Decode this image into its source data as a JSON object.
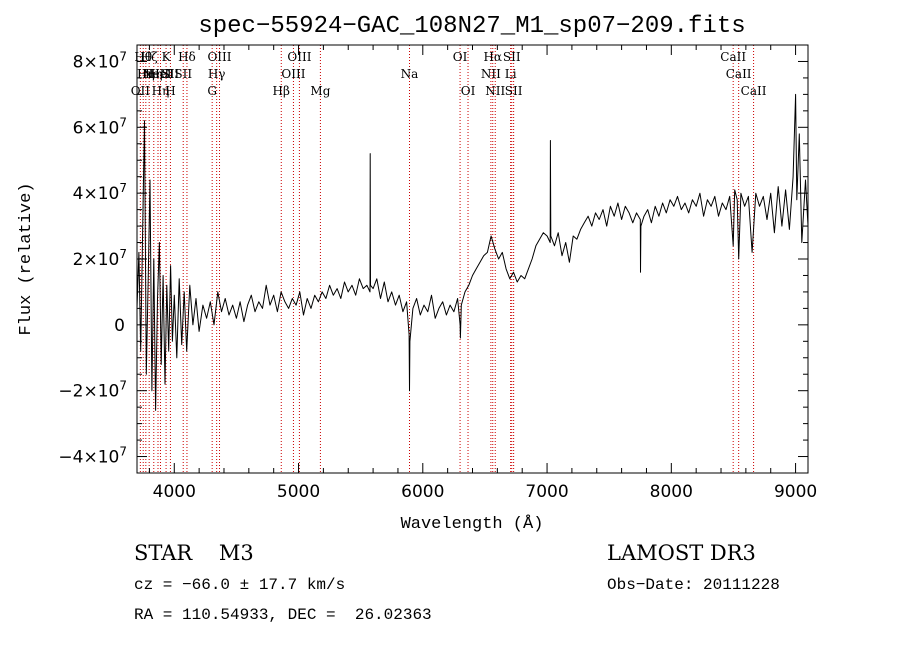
{
  "chart_data": {
    "type": "line",
    "title": "spec−55924−GAC_108N27_M1_sp07−209.fits",
    "xlabel": "Wavelength (Å)",
    "ylabel": "Flux (relative)",
    "xlim": [
      3700,
      9100
    ],
    "ylim": [
      -45000000,
      85000000
    ],
    "x_ticks": [
      {
        "value": 4000,
        "label": "4000"
      },
      {
        "value": 5000,
        "label": "5000"
      },
      {
        "value": 6000,
        "label": "6000"
      },
      {
        "value": 7000,
        "label": "7000"
      },
      {
        "value": 8000,
        "label": "8000"
      },
      {
        "value": 9000,
        "label": "9000"
      }
    ],
    "y_ticks": [
      {
        "value": 80000000,
        "mant": "8×10",
        "exp": "7"
      },
      {
        "value": 60000000,
        "mant": "6×10",
        "exp": "7"
      },
      {
        "value": 40000000,
        "mant": "4×10",
        "exp": "7"
      },
      {
        "value": 20000000,
        "mant": "2×10",
        "exp": "7"
      },
      {
        "value": 0,
        "mant": "0",
        "exp": ""
      },
      {
        "value": -20000000,
        "mant": "−2×10",
        "exp": "7"
      },
      {
        "value": -40000000,
        "mant": "−4×10",
        "exp": "7"
      }
    ],
    "series": [
      {
        "name": "flux",
        "color": "#000000",
        "points": [
          [
            3700,
            5000000
          ],
          [
            3715,
            22000000
          ],
          [
            3730,
            -8000000
          ],
          [
            3745,
            28000000
          ],
          [
            3760,
            62000000
          ],
          [
            3775,
            -15000000
          ],
          [
            3790,
            14000000
          ],
          [
            3805,
            44000000
          ],
          [
            3820,
            -20000000
          ],
          [
            3835,
            20000000
          ],
          [
            3850,
            -26000000
          ],
          [
            3865,
            8000000
          ],
          [
            3880,
            25000000
          ],
          [
            3895,
            -12000000
          ],
          [
            3910,
            15000000
          ],
          [
            3925,
            -18000000
          ],
          [
            3940,
            12000000
          ],
          [
            3955,
            -8000000
          ],
          [
            3970,
            18000000
          ],
          [
            3985,
            -5000000
          ],
          [
            4000,
            9000000
          ],
          [
            4020,
            -10000000
          ],
          [
            4040,
            14000000
          ],
          [
            4060,
            -6000000
          ],
          [
            4080,
            10000000
          ],
          [
            4100,
            -8000000
          ],
          [
            4125,
            12000000
          ],
          [
            4150,
            0
          ],
          [
            4175,
            8000000
          ],
          [
            4200,
            -2000000
          ],
          [
            4230,
            6000000
          ],
          [
            4260,
            2000000
          ],
          [
            4290,
            7000000
          ],
          [
            4320,
            0
          ],
          [
            4350,
            10000000
          ],
          [
            4380,
            4000000
          ],
          [
            4410,
            8000000
          ],
          [
            4440,
            3000000
          ],
          [
            4470,
            6000000
          ],
          [
            4500,
            2000000
          ],
          [
            4530,
            7000000
          ],
          [
            4560,
            1000000
          ],
          [
            4590,
            6000000
          ],
          [
            4620,
            9000000
          ],
          [
            4650,
            4000000
          ],
          [
            4680,
            7000000
          ],
          [
            4710,
            5000000
          ],
          [
            4740,
            12000000
          ],
          [
            4770,
            6000000
          ],
          [
            4800,
            9000000
          ],
          [
            4830,
            4000000
          ],
          [
            4860,
            10000000
          ],
          [
            4890,
            7000000
          ],
          [
            4920,
            5000000
          ],
          [
            4950,
            8000000
          ],
          [
            4980,
            6000000
          ],
          [
            5010,
            10000000
          ],
          [
            5040,
            3000000
          ],
          [
            5070,
            8000000
          ],
          [
            5100,
            5000000
          ],
          [
            5130,
            9000000
          ],
          [
            5160,
            7000000
          ],
          [
            5190,
            10000000
          ],
          [
            5220,
            8000000
          ],
          [
            5250,
            12000000
          ],
          [
            5280,
            9000000
          ],
          [
            5310,
            11000000
          ],
          [
            5340,
            8000000
          ],
          [
            5370,
            13000000
          ],
          [
            5400,
            10000000
          ],
          [
            5430,
            12000000
          ],
          [
            5460,
            9000000
          ],
          [
            5490,
            14000000
          ],
          [
            5520,
            11000000
          ],
          [
            5550,
            12000000
          ],
          [
            5575,
            10000000
          ],
          [
            5577,
            52000000
          ],
          [
            5579,
            12000000
          ],
          [
            5600,
            11000000
          ],
          [
            5630,
            14000000
          ],
          [
            5660,
            8000000
          ],
          [
            5690,
            13000000
          ],
          [
            5720,
            7000000
          ],
          [
            5750,
            10000000
          ],
          [
            5780,
            6000000
          ],
          [
            5810,
            9000000
          ],
          [
            5840,
            4000000
          ],
          [
            5870,
            7000000
          ],
          [
            5890,
            -3000000
          ],
          [
            5893,
            -20000000
          ],
          [
            5896,
            -5000000
          ],
          [
            5920,
            5000000
          ],
          [
            5950,
            8000000
          ],
          [
            5980,
            3000000
          ],
          [
            6010,
            6000000
          ],
          [
            6040,
            4000000
          ],
          [
            6070,
            9000000
          ],
          [
            6100,
            2000000
          ],
          [
            6130,
            5000000
          ],
          [
            6160,
            7000000
          ],
          [
            6190,
            3000000
          ],
          [
            6220,
            6000000
          ],
          [
            6250,
            4000000
          ],
          [
            6280,
            8000000
          ],
          [
            6300,
            0
          ],
          [
            6303,
            -4000000
          ],
          [
            6310,
            6000000
          ],
          [
            6340,
            10000000
          ],
          [
            6370,
            12000000
          ],
          [
            6400,
            15000000
          ],
          [
            6430,
            17000000
          ],
          [
            6460,
            19000000
          ],
          [
            6490,
            21000000
          ],
          [
            6520,
            22000000
          ],
          [
            6550,
            27000000
          ],
          [
            6580,
            23000000
          ],
          [
            6610,
            20000000
          ],
          [
            6640,
            22000000
          ],
          [
            6670,
            17000000
          ],
          [
            6700,
            14000000
          ],
          [
            6730,
            16000000
          ],
          [
            6760,
            13000000
          ],
          [
            6790,
            15000000
          ],
          [
            6820,
            14000000
          ],
          [
            6850,
            17000000
          ],
          [
            6880,
            20000000
          ],
          [
            6910,
            24000000
          ],
          [
            6940,
            26000000
          ],
          [
            6970,
            28000000
          ],
          [
            7000,
            27000000
          ],
          [
            7025,
            25000000
          ],
          [
            7027,
            56000000
          ],
          [
            7030,
            27000000
          ],
          [
            7060,
            24000000
          ],
          [
            7090,
            28000000
          ],
          [
            7120,
            21000000
          ],
          [
            7150,
            25000000
          ],
          [
            7180,
            19000000
          ],
          [
            7210,
            27000000
          ],
          [
            7240,
            26000000
          ],
          [
            7270,
            29000000
          ],
          [
            7300,
            31000000
          ],
          [
            7330,
            33000000
          ],
          [
            7360,
            30000000
          ],
          [
            7390,
            34000000
          ],
          [
            7420,
            32000000
          ],
          [
            7450,
            35000000
          ],
          [
            7480,
            30000000
          ],
          [
            7510,
            36000000
          ],
          [
            7540,
            33000000
          ],
          [
            7570,
            37000000
          ],
          [
            7600,
            32000000
          ],
          [
            7630,
            36000000
          ],
          [
            7660,
            34000000
          ],
          [
            7690,
            31000000
          ],
          [
            7720,
            34000000
          ],
          [
            7750,
            32000000
          ],
          [
            7752,
            16000000
          ],
          [
            7755,
            30000000
          ],
          [
            7780,
            33000000
          ],
          [
            7810,
            35000000
          ],
          [
            7840,
            31000000
          ],
          [
            7870,
            36000000
          ],
          [
            7900,
            33000000
          ],
          [
            7930,
            37000000
          ],
          [
            7960,
            34000000
          ],
          [
            7990,
            38000000
          ],
          [
            8020,
            36000000
          ],
          [
            8050,
            39000000
          ],
          [
            8080,
            35000000
          ],
          [
            8110,
            37000000
          ],
          [
            8140,
            34000000
          ],
          [
            8170,
            38000000
          ],
          [
            8200,
            36000000
          ],
          [
            8230,
            40000000
          ],
          [
            8260,
            33000000
          ],
          [
            8290,
            38000000
          ],
          [
            8320,
            36000000
          ],
          [
            8350,
            39000000
          ],
          [
            8380,
            33000000
          ],
          [
            8410,
            37000000
          ],
          [
            8440,
            35000000
          ],
          [
            8470,
            39000000
          ],
          [
            8498,
            24000000
          ],
          [
            8510,
            41000000
          ],
          [
            8530,
            38000000
          ],
          [
            8542,
            20000000
          ],
          [
            8560,
            40000000
          ],
          [
            8590,
            36000000
          ],
          [
            8620,
            39000000
          ],
          [
            8650,
            22000000
          ],
          [
            8680,
            40000000
          ],
          [
            8710,
            36000000
          ],
          [
            8740,
            39000000
          ],
          [
            8770,
            32000000
          ],
          [
            8800,
            40000000
          ],
          [
            8830,
            28000000
          ],
          [
            8860,
            42000000
          ],
          [
            8890,
            30000000
          ],
          [
            8920,
            41000000
          ],
          [
            8950,
            29000000
          ],
          [
            8980,
            45000000
          ],
          [
            9000,
            70000000
          ],
          [
            9010,
            38000000
          ],
          [
            9030,
            58000000
          ],
          [
            9050,
            25000000
          ],
          [
            9080,
            44000000
          ],
          [
            9100,
            30000000
          ]
        ]
      }
    ],
    "line_markers": [
      {
        "wl": 3727,
        "labels": [
          [
            3,
            "OII"
          ]
        ]
      },
      {
        "wl": 3750,
        "labels": [
          [
            1,
            "Hθ"
          ]
        ]
      },
      {
        "wl": 3771,
        "labels": [
          [
            2,
            "Hη"
          ]
        ]
      },
      {
        "wl": 3798,
        "labels": [
          [
            1,
            "Hζ"
          ]
        ]
      },
      {
        "wl": 3835,
        "labels": [
          [
            2,
            "Hη"
          ]
        ]
      },
      {
        "wl": 3869,
        "labels": [
          [
            2,
            "NeIII"
          ]
        ]
      },
      {
        "wl": 3889,
        "labels": [
          [
            2,
            "HeI"
          ],
          [
            3,
            "Hη"
          ]
        ]
      },
      {
        "wl": 3934,
        "labels": [
          [
            1,
            "K"
          ]
        ]
      },
      {
        "wl": 3969,
        "labels": [
          [
            2,
            "SII"
          ],
          [
            3,
            "H"
          ]
        ]
      },
      {
        "wl": 4072,
        "labels": [
          [
            2,
            "SII"
          ]
        ]
      },
      {
        "wl": 4102,
        "labels": [
          [
            1,
            "Hδ"
          ]
        ]
      },
      {
        "wl": 4305,
        "labels": [
          [
            3,
            "G"
          ]
        ]
      },
      {
        "wl": 4341,
        "labels": [
          [
            2,
            "Hγ"
          ]
        ]
      },
      {
        "wl": 4364,
        "labels": [
          [
            1,
            "OIII"
          ]
        ]
      },
      {
        "wl": 4861,
        "labels": [
          [
            3,
            "Hβ"
          ]
        ]
      },
      {
        "wl": 4959,
        "labels": [
          [
            2,
            "OIII"
          ]
        ]
      },
      {
        "wl": 5007,
        "labels": [
          [
            1,
            "OIII"
          ]
        ]
      },
      {
        "wl": 5176,
        "labels": [
          [
            3,
            "Mg"
          ]
        ]
      },
      {
        "wl": 5893,
        "labels": [
          [
            2,
            "Na"
          ]
        ]
      },
      {
        "wl": 6300,
        "labels": [
          [
            1,
            "OI"
          ]
        ]
      },
      {
        "wl": 6364,
        "labels": [
          [
            3,
            "OI"
          ]
        ]
      },
      {
        "wl": 6548,
        "labels": [
          [
            2,
            "NII"
          ]
        ]
      },
      {
        "wl": 6563,
        "labels": [
          [
            1,
            "Hα"
          ]
        ]
      },
      {
        "wl": 6583,
        "labels": [
          [
            3,
            "NII"
          ]
        ]
      },
      {
        "wl": 6707,
        "labels": [
          [
            2,
            "Li"
          ]
        ]
      },
      {
        "wl": 6716,
        "labels": [
          [
            1,
            "SII"
          ]
        ]
      },
      {
        "wl": 6731,
        "labels": [
          [
            3,
            "SII"
          ]
        ]
      },
      {
        "wl": 8498,
        "labels": [
          [
            1,
            "CaII"
          ]
        ]
      },
      {
        "wl": 8542,
        "labels": [
          [
            2,
            "CaII"
          ]
        ]
      },
      {
        "wl": 8662,
        "labels": [
          [
            3,
            "CaII"
          ]
        ]
      }
    ],
    "marker_color": "#cc0000"
  },
  "info": {
    "left_line1": "STAR    M3",
    "left_line2": "cz = −66.0 ± 17.7 km/s",
    "left_line3": "RA = 110.54933, DEC =  26.02363",
    "right_line1": "LAMOST DR3",
    "right_line2": "Obs−Date: 20111228"
  }
}
